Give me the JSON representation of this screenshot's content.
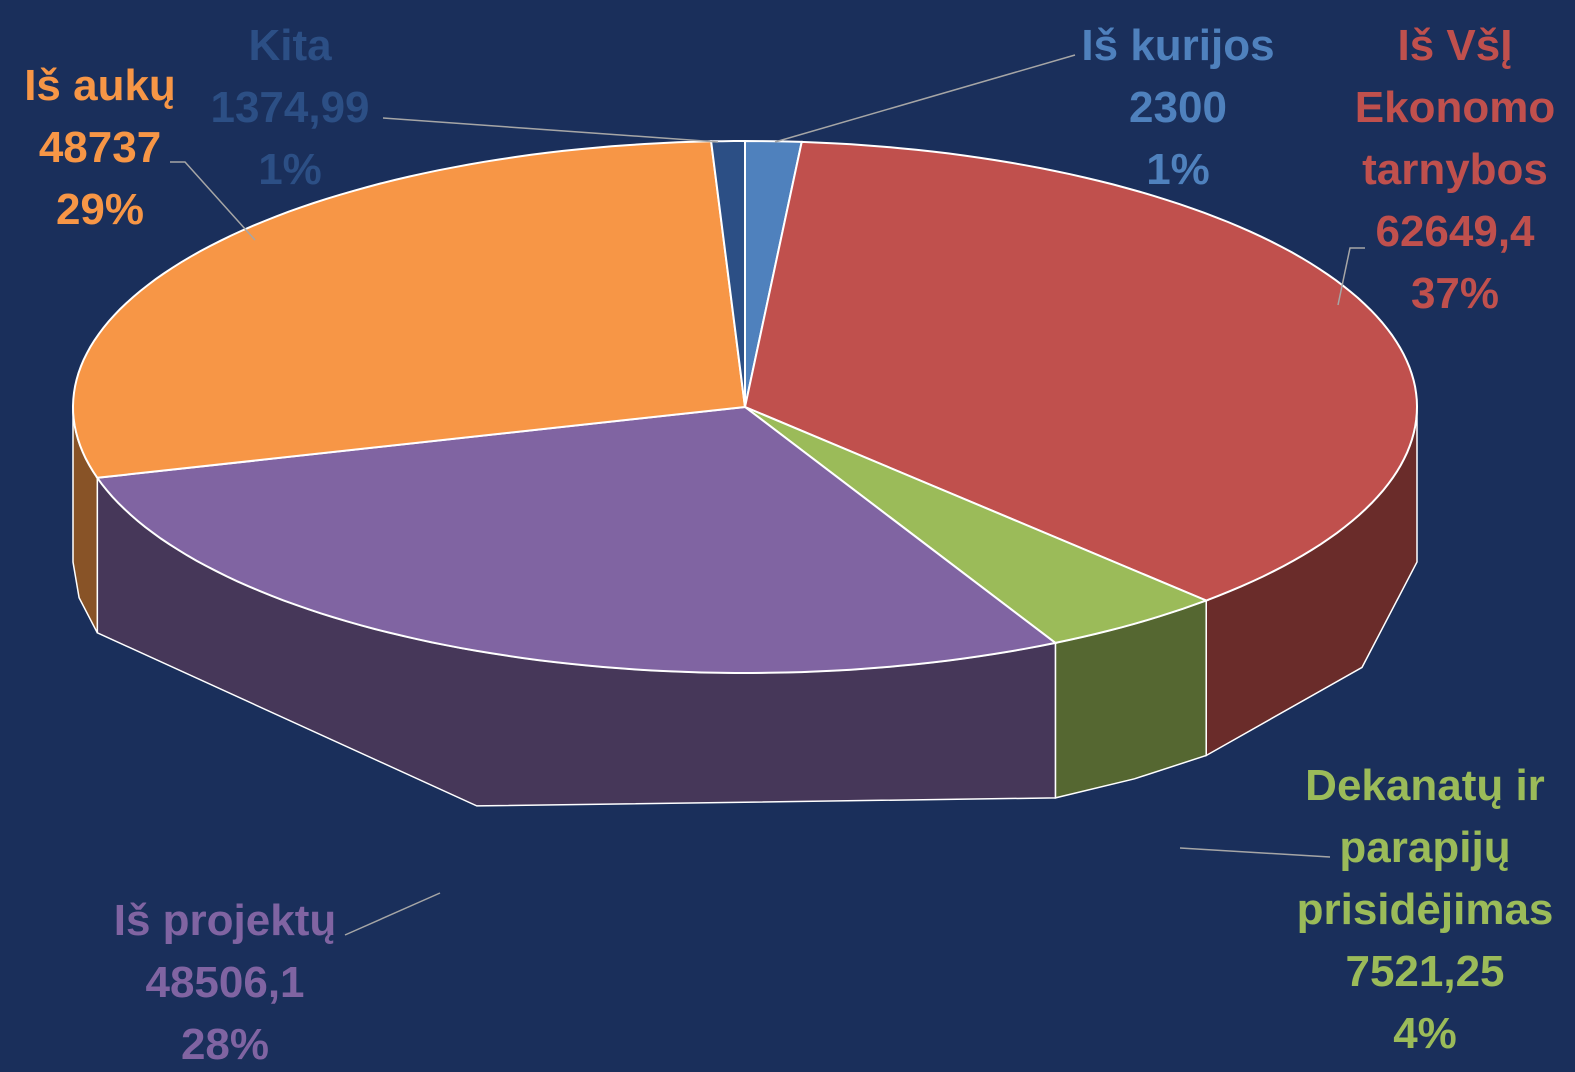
{
  "chart_data": {
    "type": "pie3d",
    "categories": [
      "Iš kurijos",
      "Iš VšĮ Ekonomo tarnybos",
      "Dekanatų ir parapijų prisidėjimas",
      "Iš projektų",
      "Iš aukų",
      "Kita"
    ],
    "values": [
      2300,
      62649.4,
      7521.25,
      48506.1,
      48737,
      1374.99
    ],
    "value_labels": [
      "2300",
      "62649,4",
      "7521,25",
      "48506,1",
      "48737",
      "1374,99"
    ],
    "percents": [
      1,
      37,
      4,
      28,
      29,
      1
    ],
    "percent_labels": [
      "1%",
      "37%",
      "4%",
      "28%",
      "29%",
      "1%"
    ],
    "colors": [
      "#4f81bd",
      "#c0504d",
      "#9bbb59",
      "#8064a2",
      "#f79646",
      "#2c4f85"
    ]
  }
}
